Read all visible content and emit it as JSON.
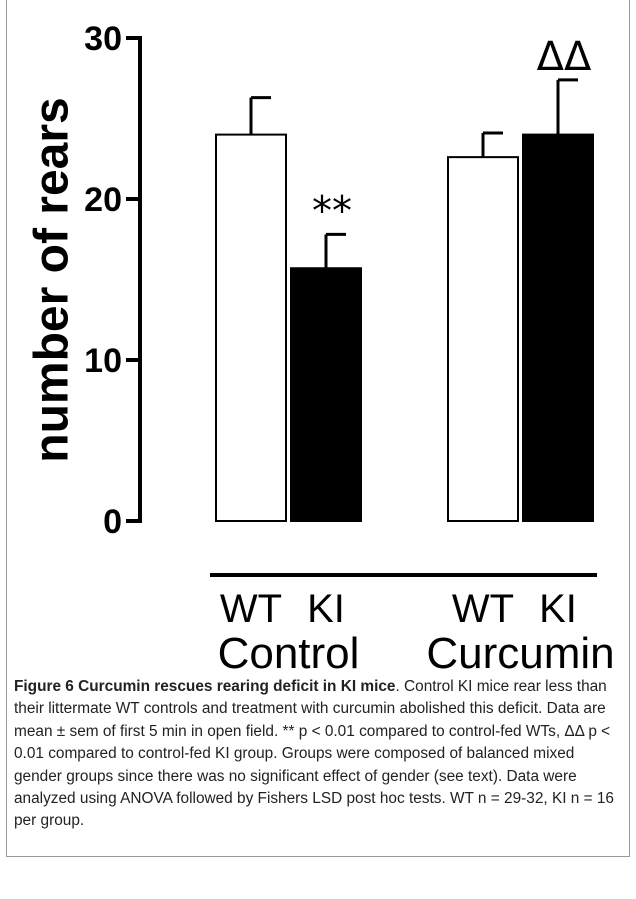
{
  "chart_data": {
    "type": "bar",
    "ylabel": "number of rears",
    "categories": [
      "Control",
      "Curcumin"
    ],
    "series": [
      {
        "name": "WT",
        "color": "#ffffff",
        "values": [
          24,
          22.6
        ],
        "errors": [
          2.3,
          1.5
        ]
      },
      {
        "name": "KI",
        "color": "#000000",
        "values": [
          15.7,
          24
        ],
        "errors": [
          2.1,
          3.4
        ],
        "annotations": [
          "**",
          "ΔΔ"
        ]
      }
    ],
    "ylim": [
      0,
      30
    ],
    "yticks": [
      0,
      10,
      20,
      30
    ]
  },
  "caption": {
    "title": "Figure 6 Curcumin rescues rearing deficit in KI mice",
    "text": ". Control KI mice rear less than their littermate WT controls and treatment with curcumin abolished this deficit. Data are mean ± sem of first 5 min in open field. ** p < 0.01 compared to control-fed WTs, ΔΔ p < 0.01 compared to control-fed KI group. Groups were composed of balanced mixed gender groups since there was no significant effect of gender (see text). Data were analyzed using ANOVA followed by Fishers LSD post hoc tests. WT n = 29-32, KI n = 16 per group."
  }
}
